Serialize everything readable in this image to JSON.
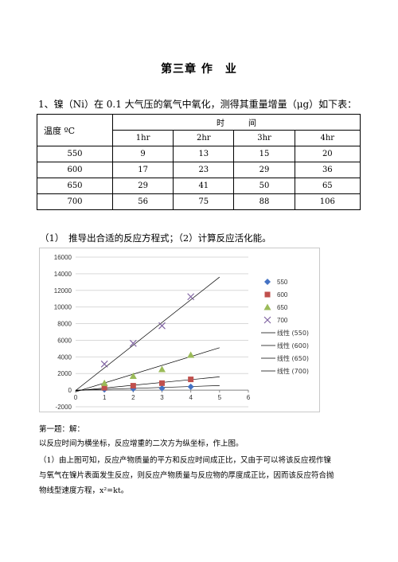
{
  "title": "第三章 作　业",
  "question1": "1、镍（Ni）在 0.1 大气压的氧气中氧化，测得其重量增量（μg）如下表：",
  "table": {
    "corner_header": "温度 ºC",
    "time_header": "时　　　间",
    "columns": [
      "1hr",
      "2hr",
      "3hr",
      "4hr"
    ],
    "rows": [
      {
        "temp": "550",
        "values": [
          "9",
          "13",
          "15",
          "20"
        ]
      },
      {
        "temp": "600",
        "values": [
          "17",
          "23",
          "29",
          "36"
        ]
      },
      {
        "temp": "650",
        "values": [
          "29",
          "41",
          "50",
          "65"
        ]
      },
      {
        "temp": "700",
        "values": [
          "56",
          "75",
          "88",
          "106"
        ]
      }
    ]
  },
  "sub_question": "（1）　推导出合适的反应方程式；（2）计算反应活化能。",
  "chart_data": {
    "type": "scatter",
    "xlim": [
      0,
      6
    ],
    "ylim": [
      -2000,
      16000
    ],
    "x_ticks": [
      "0",
      "1",
      "2",
      "3",
      "4",
      "5",
      "6"
    ],
    "y_ticks": [
      "-2000",
      "0",
      "2000",
      "4000",
      "6000",
      "8000",
      "10000",
      "12000",
      "14000",
      "16000"
    ],
    "grid": true,
    "legend_position": "right",
    "series": [
      {
        "name": "550",
        "color": "#4472C4",
        "marker": "diamond",
        "x": [
          1,
          2,
          3,
          4
        ],
        "y": [
          81,
          169,
          225,
          400
        ]
      },
      {
        "name": "600",
        "color": "#C0504D",
        "marker": "square",
        "x": [
          1,
          2,
          3,
          4
        ],
        "y": [
          289,
          529,
          841,
          1296
        ]
      },
      {
        "name": "650",
        "color": "#9BBB59",
        "marker": "triangle",
        "x": [
          1,
          2,
          3,
          4
        ],
        "y": [
          841,
          1681,
          2500,
          4225
        ]
      },
      {
        "name": "700",
        "color": "#8064A2",
        "marker": "x",
        "x": [
          1,
          2,
          3,
          4
        ],
        "y": [
          3136,
          5625,
          7744,
          11236
        ]
      }
    ],
    "trendlines": [
      {
        "name": "线性 (550)",
        "x": [
          0,
          5
        ],
        "y": [
          -10,
          550
        ]
      },
      {
        "name": "线性 (600)",
        "x": [
          0,
          5
        ],
        "y": [
          -80,
          1600
        ]
      },
      {
        "name": "线性 (650)",
        "x": [
          0,
          5
        ],
        "y": [
          -200,
          5100
        ]
      },
      {
        "name": "线性 (700)",
        "x": [
          0,
          5
        ],
        "y": [
          -50,
          13600
        ]
      }
    ]
  },
  "answer": {
    "heading": "第一题：解：",
    "line1": "以反应时间为横坐标，反应增重的二次方为纵坐标，作上图。",
    "line2": "（1）由上图可知，反应产物质量的平方和反应时间成正比，又由于可以将该反应视作镍",
    "line3": "与氧气在镍片表面发生反应，则反应产物质量与反应物的厚度成正比，因而该反应符合抛",
    "line4": "物线型速度方程，x²=kt。"
  }
}
